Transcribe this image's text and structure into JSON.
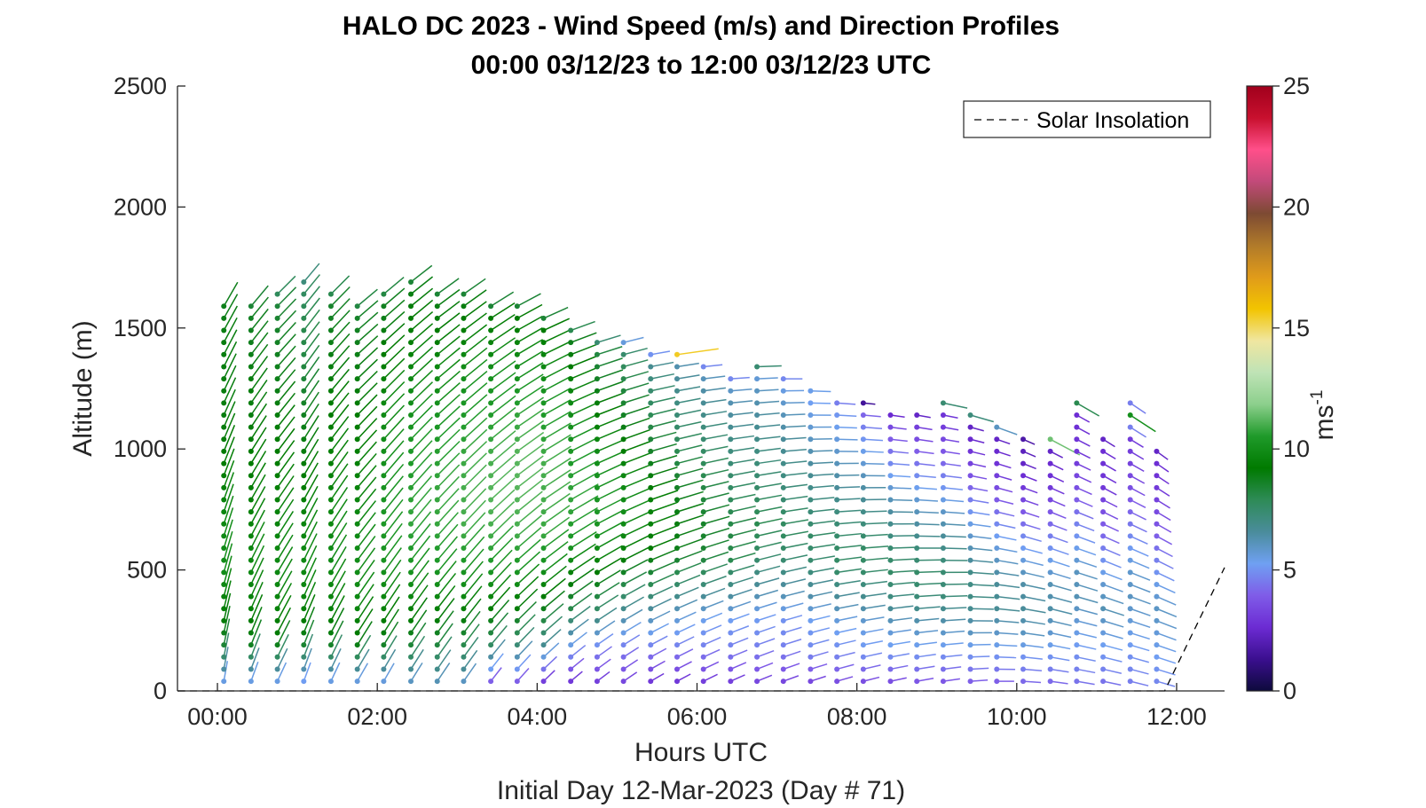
{
  "chart_data": {
    "type": "scatter",
    "title": "HALO DC 2023 - Wind Speed (m/s) and Direction Profiles",
    "subtitle": "00:00 03/12/23 to 12:00 03/12/23  UTC",
    "xlabel": "Hours UTC",
    "xlabel2": "Initial Day 12-Mar-2023 (Day # 71)",
    "ylabel": "Altitude (m)",
    "xlim": [
      -0.5,
      12.6
    ],
    "ylim": [
      0,
      2500
    ],
    "x_ticks": [
      0,
      2,
      4,
      6,
      8,
      10,
      12
    ],
    "x_tick_labels": [
      "00:00",
      "02:00",
      "04:00",
      "06:00",
      "08:00",
      "10:00",
      "12:00"
    ],
    "y_ticks": [
      0,
      500,
      1000,
      1500,
      2000,
      2500
    ],
    "y_tick_labels": [
      "0",
      "500",
      "1000",
      "1500",
      "2000",
      "2500"
    ],
    "colorbar": {
      "label": "ms",
      "label_sup": "-1",
      "range": [
        0,
        25
      ],
      "ticks": [
        0,
        5,
        10,
        15,
        20,
        25
      ],
      "tick_labels": [
        "0",
        "5",
        "10",
        "15",
        "20",
        "25"
      ],
      "colors": [
        "#0d0a3c",
        "#3b0f8f",
        "#6c2bd3",
        "#7f5ce8",
        "#6fa0f2",
        "#4a8c9b",
        "#2e8b57",
        "#007a00",
        "#1f9a2a",
        "#8ccf8c",
        "#bfe3b6",
        "#f0e6a0",
        "#f2c400",
        "#e09b1a",
        "#b07a2a",
        "#7d4a33",
        "#c24a7a",
        "#ff4f8a",
        "#c8102e",
        "#a0001c"
      ]
    },
    "legend": {
      "label": "Solar Insolation",
      "position": "top-right"
    },
    "solar_insolation": {
      "x": [
        -0.5,
        11.85,
        12.6
      ],
      "y": [
        0,
        0,
        510
      ]
    },
    "profiles": [
      {
        "hour": 0.08,
        "top": 1600,
        "dir": 190,
        "speeds": [
          5.5,
          8.5,
          9.5,
          10,
          9.8,
          9.5,
          9.2,
          9.0,
          9.0,
          9.0,
          8.8,
          8.8
        ]
      },
      {
        "hour": 0.42,
        "top": 1600,
        "dir": 200,
        "speeds": [
          5.5,
          8.8,
          9.5,
          9.8,
          9.6,
          9.4,
          9.2,
          9.0,
          9.0,
          8.8,
          8.6,
          8.4
        ]
      },
      {
        "hour": 0.75,
        "top": 1650,
        "dir": 205,
        "speeds": [
          5.5,
          9.0,
          9.6,
          9.8,
          9.6,
          9.4,
          9.2,
          9.0,
          8.8,
          8.6,
          8.2,
          7.8
        ]
      },
      {
        "hour": 1.08,
        "top": 1700,
        "dir": 200,
        "speeds": [
          5.2,
          8.8,
          9.6,
          9.8,
          9.6,
          9.2,
          9.0,
          8.6,
          8.2,
          8.0,
          7.6,
          7.2
        ]
      },
      {
        "hour": 1.42,
        "top": 1650,
        "dir": 205,
        "speeds": [
          5.5,
          8.8,
          9.6,
          9.9,
          9.8,
          9.6,
          9.4,
          9.2,
          9.0,
          8.8,
          8.4,
          8.0
        ]
      },
      {
        "hour": 1.75,
        "top": 1600,
        "dir": 210,
        "speeds": [
          5.6,
          9.0,
          9.7,
          10,
          9.8,
          9.6,
          9.4,
          9.2,
          9.0,
          8.8,
          8.5,
          8.2
        ]
      },
      {
        "hour": 2.08,
        "top": 1650,
        "dir": 210,
        "speeds": [
          5.6,
          8.8,
          9.6,
          10.2,
          10.4,
          10.2,
          10,
          9.8,
          9.4,
          9.0,
          8.6,
          8.2
        ]
      },
      {
        "hour": 2.42,
        "top": 1700,
        "dir": 212,
        "speeds": [
          6.0,
          8.6,
          9.6,
          10.4,
          10.8,
          10.6,
          10.4,
          10,
          9.6,
          9.2,
          8.8,
          8.4
        ]
      },
      {
        "hour": 2.75,
        "top": 1650,
        "dir": 214,
        "speeds": [
          6.2,
          8.4,
          9.6,
          10.4,
          10.8,
          10.8,
          10.6,
          10.2,
          9.8,
          9.2,
          8.8,
          8.4
        ]
      },
      {
        "hour": 3.08,
        "top": 1650,
        "dir": 215,
        "speeds": [
          6.0,
          8.2,
          9.6,
          10.4,
          11,
          11,
          10.8,
          10.4,
          10,
          9.4,
          8.8,
          8.4
        ]
      },
      {
        "hour": 3.42,
        "top": 1600,
        "dir": 218,
        "speeds": [
          4.0,
          7.8,
          9.4,
          10.4,
          11,
          11.2,
          11,
          10.6,
          10.2,
          9.6,
          9.0,
          8.4
        ]
      },
      {
        "hour": 3.75,
        "top": 1600,
        "dir": 222,
        "speeds": [
          4.0,
          7.4,
          9.2,
          10.4,
          11,
          11.2,
          11.2,
          10.8,
          10.2,
          9.6,
          9.0,
          8.4
        ]
      },
      {
        "hour": 4.08,
        "top": 1550,
        "dir": 226,
        "speeds": [
          3.2,
          6.8,
          8.8,
          10,
          10.8,
          11,
          11,
          10.6,
          10.2,
          9.6,
          9.0,
          8.4
        ]
      },
      {
        "hour": 4.42,
        "top": 1500,
        "dir": 230,
        "speeds": [
          3.0,
          5.4,
          8.0,
          9.4,
          10.4,
          10.8,
          10.6,
          10.2,
          9.8,
          9.2,
          8.6,
          8.0
        ]
      },
      {
        "hour": 4.75,
        "top": 1450,
        "dir": 233,
        "speeds": [
          3.2,
          4.8,
          7.4,
          9.0,
          10,
          10.4,
          10.2,
          9.8,
          9.2,
          8.6,
          8.0,
          7.4
        ]
      },
      {
        "hour": 5.08,
        "top": 1450,
        "dir": 236,
        "speeds": [
          3.4,
          4.6,
          6.6,
          8.4,
          9.6,
          10,
          9.8,
          9.2,
          8.6,
          8.0,
          7.2,
          5.6
        ]
      },
      {
        "hour": 5.42,
        "top": 1400,
        "dir": 240,
        "speeds": [
          3.0,
          4.6,
          6.2,
          8.0,
          9.2,
          9.6,
          9.2,
          8.6,
          8.0,
          7.4,
          6.4,
          5.0
        ]
      },
      {
        "hour": 5.75,
        "top": 1400,
        "dir": 242,
        "speeds": [
          3.0,
          4.6,
          5.8,
          7.6,
          8.8,
          9.0,
          8.6,
          8.0,
          7.4,
          6.8,
          6.0,
          15.5
        ]
      },
      {
        "hour": 6.08,
        "top": 1350,
        "dir": 244,
        "speeds": [
          3.2,
          4.6,
          5.4,
          7.2,
          8.4,
          8.6,
          8.2,
          7.8,
          7.2,
          6.6,
          5.8,
          4.8
        ]
      },
      {
        "hour": 6.42,
        "top": 1300,
        "dir": 246,
        "speeds": [
          3.2,
          4.6,
          5.2,
          6.8,
          8.0,
          8.2,
          7.8,
          7.4,
          7.0,
          6.4,
          5.6,
          4.8
        ]
      },
      {
        "hour": 6.75,
        "top": 1350,
        "dir": 248,
        "speeds": [
          3.4,
          4.6,
          5.2,
          6.6,
          7.6,
          8.0,
          7.6,
          7.2,
          6.8,
          6.2,
          5.4,
          7.4
        ]
      },
      {
        "hour": 7.08,
        "top": 1300,
        "dir": 250,
        "speeds": [
          3.4,
          4.6,
          5.0,
          6.4,
          7.4,
          7.8,
          7.4,
          7.0,
          6.6,
          6.0,
          5.2,
          4.8
        ]
      },
      {
        "hour": 7.42,
        "top": 1250,
        "dir": 252,
        "speeds": [
          3.4,
          4.8,
          5.2,
          6.4,
          7.4,
          7.6,
          7.2,
          6.8,
          6.2,
          5.6,
          5.0,
          5.4
        ]
      },
      {
        "hour": 7.75,
        "top": 1200,
        "dir": 254,
        "speeds": [
          3.6,
          4.8,
          5.4,
          6.6,
          7.6,
          7.6,
          7.2,
          6.6,
          6.0,
          5.4,
          4.8,
          4.6
        ]
      },
      {
        "hour": 8.08,
        "top": 1200,
        "dir": 256,
        "speeds": [
          3.6,
          5.0,
          5.6,
          6.8,
          7.6,
          7.6,
          7.0,
          6.4,
          5.6,
          4.8,
          3.6,
          1.5
        ]
      },
      {
        "hour": 8.42,
        "top": 1150,
        "dir": 258,
        "speeds": [
          3.6,
          5.0,
          5.8,
          7.0,
          7.6,
          7.4,
          6.8,
          6.0,
          5.0,
          4.0,
          3.0,
          2.6
        ]
      },
      {
        "hour": 8.75,
        "top": 1150,
        "dir": 260,
        "speeds": [
          3.8,
          5.0,
          6.0,
          7.2,
          7.6,
          7.2,
          6.4,
          5.6,
          4.6,
          3.6,
          2.8,
          2.4
        ]
      },
      {
        "hour": 9.08,
        "top": 1200,
        "dir": 262,
        "speeds": [
          3.8,
          5.0,
          6.2,
          7.2,
          7.4,
          6.8,
          6.0,
          5.0,
          4.0,
          3.2,
          2.6,
          7.4
        ]
      },
      {
        "hour": 9.42,
        "top": 1150,
        "dir": 266,
        "speeds": [
          4.0,
          5.0,
          6.2,
          7.0,
          7.0,
          6.2,
          5.4,
          4.4,
          3.4,
          2.6,
          2.2,
          7.2
        ]
      },
      {
        "hour": 9.75,
        "top": 1100,
        "dir": 270,
        "speeds": [
          4.0,
          5.0,
          6.0,
          6.8,
          6.6,
          5.8,
          5.0,
          4.0,
          3.2,
          2.6,
          2.2,
          6.0
        ]
      },
      {
        "hour": 10.08,
        "top": 1050,
        "dir": 274,
        "speeds": [
          4.2,
          5.0,
          6.0,
          6.6,
          6.4,
          5.6,
          4.8,
          3.8,
          3.0,
          2.4,
          2.0,
          1.8
        ]
      },
      {
        "hour": 10.42,
        "top": 1050,
        "dir": 278,
        "speeds": [
          4.2,
          5.0,
          5.8,
          6.4,
          6.2,
          5.4,
          4.6,
          3.8,
          3.0,
          2.6,
          2.2,
          11.5
        ]
      },
      {
        "hour": 10.75,
        "top": 1200,
        "dir": 280,
        "speeds": [
          4.4,
          5.0,
          5.6,
          6.2,
          6.0,
          5.2,
          4.4,
          3.6,
          3.0,
          2.8,
          2.6,
          8.0
        ]
      },
      {
        "hour": 11.08,
        "top": 1050,
        "dir": 282,
        "speeds": [
          4.4,
          5.0,
          5.6,
          6.2,
          5.8,
          5.0,
          4.2,
          3.6,
          3.0,
          2.8,
          2.6,
          2.4
        ]
      },
      {
        "hour": 11.42,
        "top": 1200,
        "dir": 284,
        "speeds": [
          4.6,
          5.0,
          5.6,
          6.0,
          5.8,
          5.0,
          4.2,
          3.6,
          3.2,
          3.0,
          15.5,
          4.6
        ]
      },
      {
        "hour": 11.75,
        "top": 1000,
        "dir": 286,
        "speeds": [
          4.8,
          5.2,
          5.6,
          6.0,
          5.6,
          4.8,
          4.2,
          3.6,
          3.2,
          2.8,
          2.6,
          2.4
        ]
      }
    ]
  }
}
